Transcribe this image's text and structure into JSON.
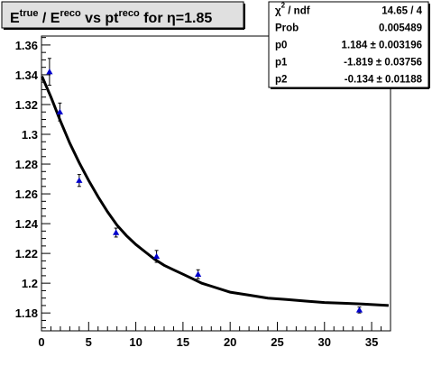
{
  "chart_data": {
    "type": "scatter",
    "title": {
      "parts": [
        {
          "text": "E",
          "style": "base"
        },
        {
          "text": "true",
          "style": "sup"
        },
        {
          "text": " / E",
          "style": "base"
        },
        {
          "text": "reco",
          "style": "sup"
        },
        {
          "text": " vs pt",
          "style": "base"
        },
        {
          "text": "reco",
          "style": "sup"
        },
        {
          "text": " for ",
          "style": "base"
        },
        {
          "text": "η",
          "style": "base"
        },
        {
          "text": "=1.85",
          "style": "base"
        }
      ]
    },
    "xlim": [
      0,
      37
    ],
    "ylim": [
      1.168,
      1.366
    ],
    "x_ticks": [
      0,
      5,
      10,
      15,
      20,
      25,
      30,
      35
    ],
    "x_tick_labels": [
      "0",
      "5",
      "10",
      "15",
      "20",
      "25",
      "30",
      "35"
    ],
    "y_ticks": [
      1.18,
      1.2,
      1.22,
      1.24,
      1.26,
      1.28,
      1.3,
      1.32,
      1.34,
      1.36
    ],
    "y_tick_labels": [
      "1.18",
      "1.2",
      "1.22",
      "1.24",
      "1.26",
      "1.28",
      "1.3",
      "1.32",
      "1.34",
      "1.36"
    ],
    "grid": false,
    "marker_color": "#0000cc",
    "points": [
      {
        "x": 0.85,
        "y": 1.342,
        "err": 0.009
      },
      {
        "x": 1.95,
        "y": 1.315,
        "err": 0.006
      },
      {
        "x": 4.0,
        "y": 1.269,
        "err": 0.004
      },
      {
        "x": 7.9,
        "y": 1.234,
        "err": 0.003
      },
      {
        "x": 12.2,
        "y": 1.218,
        "err": 0.004
      },
      {
        "x": 16.6,
        "y": 1.206,
        "err": 0.003
      },
      {
        "x": 33.7,
        "y": 1.182,
        "err": 0.002
      }
    ],
    "fit": {
      "function": "p0 + p1*x^p2 (approx rendered)",
      "curve": [
        [
          0.05,
          1.339
        ],
        [
          1,
          1.325
        ],
        [
          2,
          1.309
        ],
        [
          3,
          1.294
        ],
        [
          4,
          1.281
        ],
        [
          5,
          1.269
        ],
        [
          6,
          1.258
        ],
        [
          7,
          1.248
        ],
        [
          8,
          1.239
        ],
        [
          9,
          1.232
        ],
        [
          10,
          1.226
        ],
        [
          11,
          1.221
        ],
        [
          12,
          1.216
        ],
        [
          13,
          1.212
        ],
        [
          14,
          1.209
        ],
        [
          15,
          1.206
        ],
        [
          16,
          1.203
        ],
        [
          17,
          1.2
        ],
        [
          18,
          1.198
        ],
        [
          20,
          1.194
        ],
        [
          22,
          1.192
        ],
        [
          24,
          1.19
        ],
        [
          26,
          1.189
        ],
        [
          28,
          1.188
        ],
        [
          30,
          1.187
        ],
        [
          32,
          1.1865
        ],
        [
          34,
          1.186
        ],
        [
          35.5,
          1.1855
        ],
        [
          36.8,
          1.185
        ]
      ]
    },
    "stats": [
      {
        "label_parts": [
          {
            "text": "χ",
            "style": "base"
          },
          {
            "text": "2",
            "style": "sup"
          },
          {
            "text": " / ndf",
            "style": "base"
          }
        ],
        "value": "14.65 / 4"
      },
      {
        "label_parts": [
          {
            "text": "Prob",
            "style": "base"
          }
        ],
        "value": "0.005489"
      },
      {
        "label_parts": [
          {
            "text": "p0",
            "style": "base"
          }
        ],
        "value": "1.184 ± 0.003196"
      },
      {
        "label_parts": [
          {
            "text": "p1",
            "style": "base"
          }
        ],
        "value": "-1.819 ± 0.03756"
      },
      {
        "label_parts": [
          {
            "text": "p2",
            "style": "base"
          }
        ],
        "value": "-0.134 ± 0.01188"
      }
    ]
  }
}
